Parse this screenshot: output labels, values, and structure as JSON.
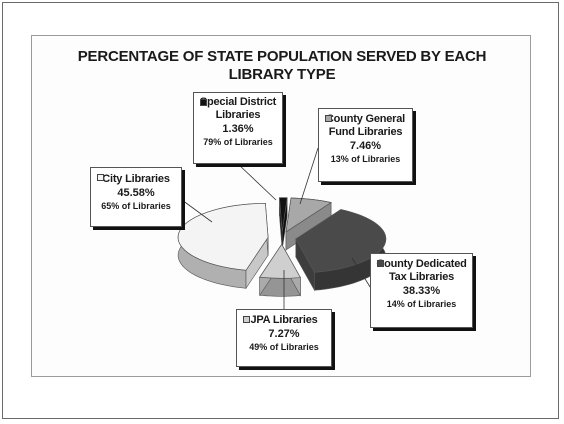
{
  "chart_data": {
    "type": "pie",
    "title": "PERCENTAGE OF STATE POPULATION SERVED BY EACH LIBRARY TYPE",
    "title_lines": [
      "PERCENTAGE OF STATE POPULATION SERVED BY EACH",
      "LIBRARY TYPE"
    ],
    "legend": "callouts",
    "slices": [
      {
        "name_lines": [
          "Special District",
          "Libraries"
        ],
        "value": 1.36,
        "value_label": "1.36%",
        "share_label": "79% of Libraries",
        "color": "#111111"
      },
      {
        "name_lines": [
          "County General",
          "Fund Libraries"
        ],
        "value": 7.46,
        "value_label": "7.46%",
        "share_label": "13% of Libraries",
        "color": "#a8a8a8"
      },
      {
        "name_lines": [
          "County Dedicated",
          "Tax Libraries"
        ],
        "value": 38.33,
        "value_label": "38.33%",
        "share_label": "14% of Libraries",
        "color": "#4a4a4a"
      },
      {
        "name_lines": [
          "JPA Libraries"
        ],
        "value": 7.27,
        "value_label": "7.27%",
        "share_label": "49% of Libraries",
        "color": "#cfcfcf"
      },
      {
        "name_lines": [
          "City Libraries"
        ],
        "value": 45.58,
        "value_label": "45.58%",
        "share_label": "65% of Libraries",
        "color": "#f4f4f4"
      }
    ]
  }
}
